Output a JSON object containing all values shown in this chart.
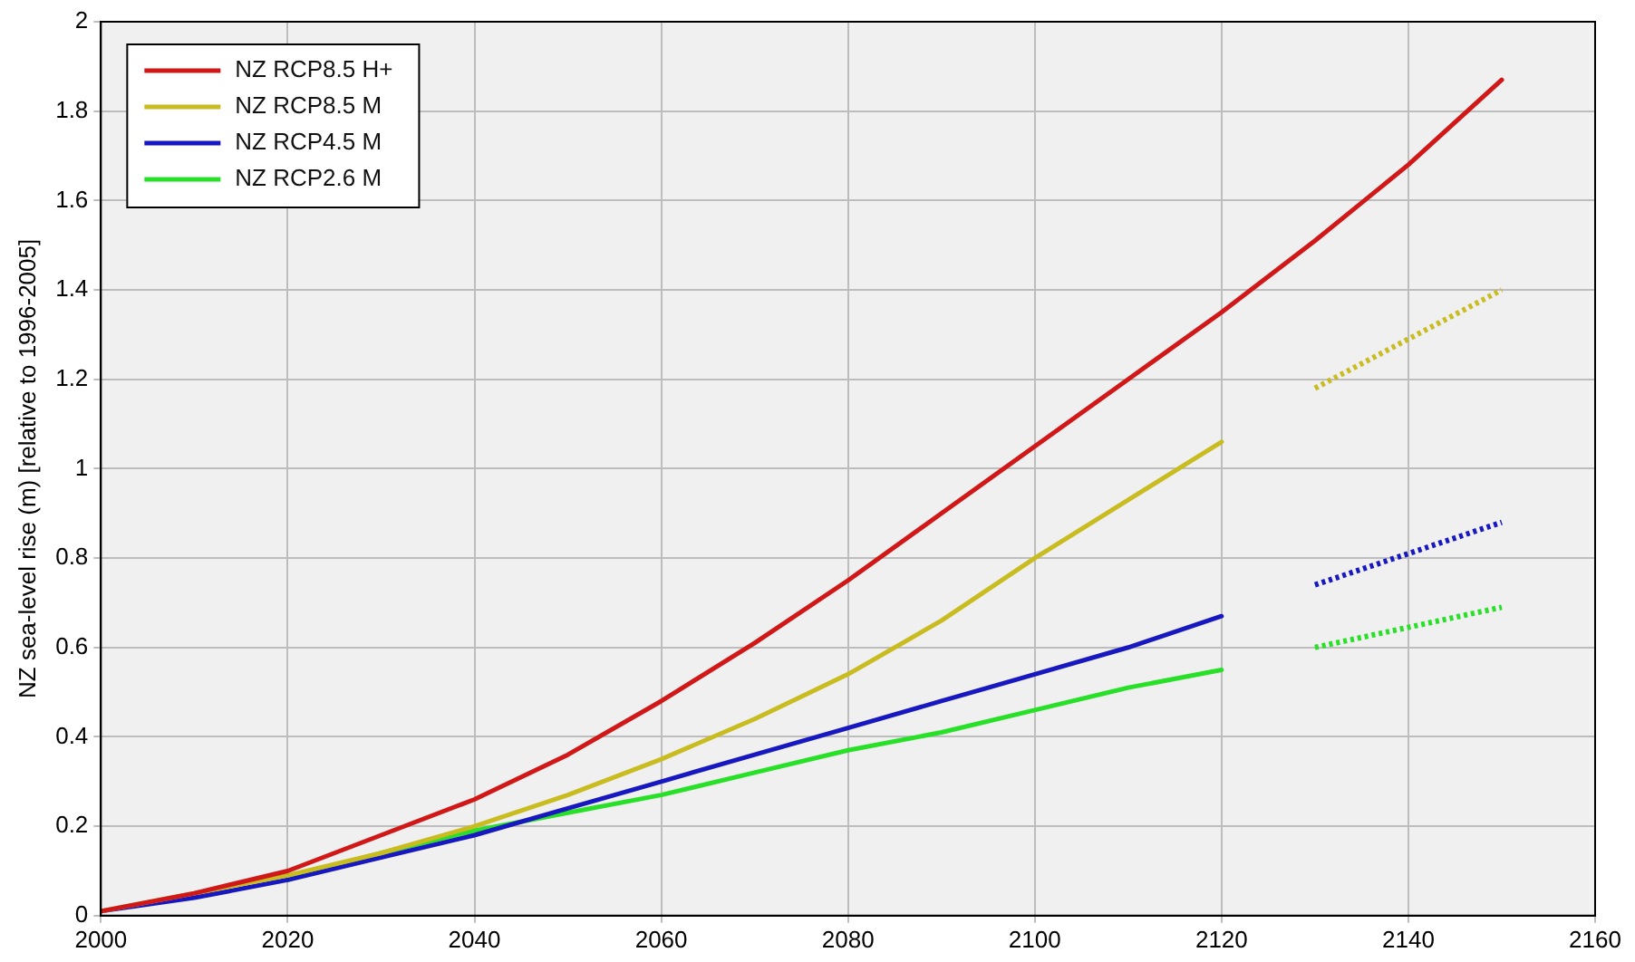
{
  "chart_data": {
    "type": "line",
    "ylabel": "NZ sea-level rise (m) [relative to 1996-2005]",
    "xlim": [
      2000,
      2160
    ],
    "xticks": [
      2000,
      2020,
      2040,
      2060,
      2080,
      2100,
      2120,
      2140,
      2160
    ],
    "ylim": [
      0,
      2
    ],
    "yticks": [
      0,
      0.2,
      0.4,
      0.6,
      0.8,
      1,
      1.2,
      1.4,
      1.6,
      1.8,
      2
    ],
    "grid": true,
    "legend": "top left",
    "marker": "none",
    "series": [
      {
        "name": "NZ RCP8.5 H+",
        "color": "#d01818",
        "x": [
          2000,
          2010,
          2020,
          2030,
          2040,
          2050,
          2060,
          2070,
          2080,
          2090,
          2100,
          2110,
          2120,
          2130,
          2140,
          2150
        ],
        "values": [
          0.01,
          0.05,
          0.1,
          0.18,
          0.26,
          0.36,
          0.48,
          0.61,
          0.75,
          0.9,
          1.05,
          1.2,
          1.35,
          1.51,
          1.68,
          1.87
        ]
      },
      {
        "name": "NZ RCP8.5 M",
        "color": "#c8bc20",
        "x": [
          2000,
          2010,
          2020,
          2030,
          2040,
          2050,
          2060,
          2070,
          2080,
          2090,
          2100,
          2110,
          2120
        ],
        "values": [
          0.01,
          0.05,
          0.09,
          0.14,
          0.2,
          0.27,
          0.35,
          0.44,
          0.54,
          0.66,
          0.8,
          0.93,
          1.06
        ]
      },
      {
        "name": "NZ RCP4.5 M",
        "color": "#1818c0",
        "x": [
          2000,
          2010,
          2020,
          2030,
          2040,
          2050,
          2060,
          2070,
          2080,
          2090,
          2100,
          2110,
          2120
        ],
        "values": [
          0.01,
          0.04,
          0.08,
          0.13,
          0.18,
          0.24,
          0.3,
          0.36,
          0.42,
          0.48,
          0.54,
          0.6,
          0.67
        ]
      },
      {
        "name": "NZ RCP2.6 M",
        "color": "#28e028",
        "x": [
          2020,
          2030,
          2040,
          2050,
          2060,
          2070,
          2080,
          2090,
          2100,
          2110,
          2120
        ],
        "values": [
          0.08,
          0.14,
          0.19,
          0.23,
          0.27,
          0.32,
          0.37,
          0.41,
          0.46,
          0.51,
          0.55
        ]
      },
      {
        "color": "#c8bc20",
        "line_style": "dotted",
        "x": [
          2130,
          2150
        ],
        "values": [
          1.18,
          1.4
        ]
      },
      {
        "color": "#1818c0",
        "line_style": "dotted",
        "x": [
          2130,
          2150
        ],
        "values": [
          0.74,
          0.88
        ]
      },
      {
        "color": "#28e028",
        "line_style": "dotted",
        "x": [
          2130,
          2150
        ],
        "values": [
          0.6,
          0.69
        ]
      }
    ]
  }
}
